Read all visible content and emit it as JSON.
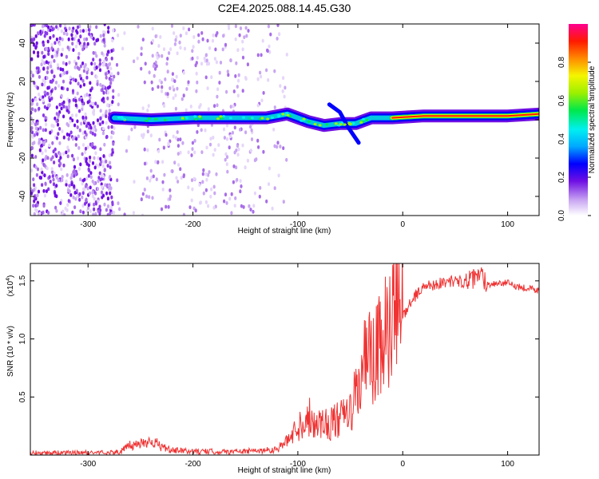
{
  "title": "C2E4.2025.088.14.45.G30",
  "chart_data": [
    {
      "type": "heatmap",
      "name": "spectrogram",
      "xlabel": "Height of straight line (km)",
      "ylabel": "Frequency (Hz)",
      "xlim": [
        -355,
        130
      ],
      "ylim": [
        -50,
        50
      ],
      "x_ticks": [
        -300,
        -200,
        -100,
        0,
        100
      ],
      "y_ticks": [
        -40,
        -20,
        0,
        20,
        40
      ],
      "colorbar": {
        "label": "Normalized spectral amplitude",
        "range": [
          0,
          1
        ],
        "ticks": [
          "0.0",
          "0.2",
          "0.4",
          "0.6",
          "0.8"
        ],
        "colors": [
          "#ffffff",
          "#c9a6f2",
          "#6f0fe3",
          "#0000ff",
          "#00a8ff",
          "#00f0f0",
          "#00e84a",
          "#9cf000",
          "#f5f500",
          "#ff8a00",
          "#ff1a00",
          "#ff0090"
        ]
      },
      "ridge": {
        "start_x": -275,
        "points": [
          [
            -275,
            1
          ],
          [
            -240,
            0
          ],
          [
            -200,
            1
          ],
          [
            -160,
            1
          ],
          [
            -130,
            1
          ],
          [
            -110,
            3
          ],
          [
            -90,
            -1
          ],
          [
            -75,
            -3
          ],
          [
            -60,
            -2
          ],
          [
            -45,
            -2
          ],
          [
            -30,
            1
          ],
          [
            -10,
            1
          ],
          [
            20,
            2
          ],
          [
            60,
            2
          ],
          [
            100,
            2
          ],
          [
            130,
            3
          ]
        ],
        "branch": [
          [
            -70,
            8
          ],
          [
            -60,
            4
          ],
          [
            -52,
            -4
          ],
          [
            -42,
            -12
          ]
        ]
      },
      "noise_region": [
        -355,
        -110
      ]
    },
    {
      "type": "line",
      "name": "snr",
      "xlabel": "Height of straight line (km)",
      "ylabel": "SNR (10 * v/v)",
      "y_multiplier_label": "(x10",
      "y_multiplier_exponent": "4",
      "xlim": [
        -355,
        130
      ],
      "ylim": [
        0,
        16500
      ],
      "x_ticks": [
        -300,
        -200,
        -100,
        0,
        100
      ],
      "y_ticks": [
        5000,
        10000,
        15000
      ],
      "y_tick_labels": [
        "0.5",
        "1.0",
        "1.5"
      ],
      "color": "#f03232",
      "series": [
        {
          "x": [
            -355,
            -330,
            -300,
            -270,
            -260,
            -250,
            -240,
            -230,
            -220,
            -200,
            -180,
            -160,
            -140,
            -120,
            -110,
            -100,
            -90,
            -80,
            -70,
            -60,
            -50,
            -45,
            -40,
            -35,
            -30,
            -25,
            -20,
            -15,
            -10,
            -5,
            0,
            10,
            20,
            30,
            40,
            50,
            60,
            70,
            75,
            80,
            90,
            100,
            110,
            120,
            130
          ],
          "y": [
            200,
            200,
            200,
            250,
            800,
            1000,
            1300,
            700,
            400,
            300,
            300,
            300,
            350,
            500,
            1200,
            2500,
            3300,
            2800,
            2700,
            3000,
            3700,
            5000,
            6500,
            8500,
            8000,
            8500,
            9500,
            10500,
            11500,
            12000,
            12000,
            13500,
            14500,
            14700,
            14900,
            15000,
            14900,
            15200,
            15600,
            14700,
            14800,
            14800,
            14500,
            14400,
            14100
          ]
        }
      ]
    }
  ]
}
